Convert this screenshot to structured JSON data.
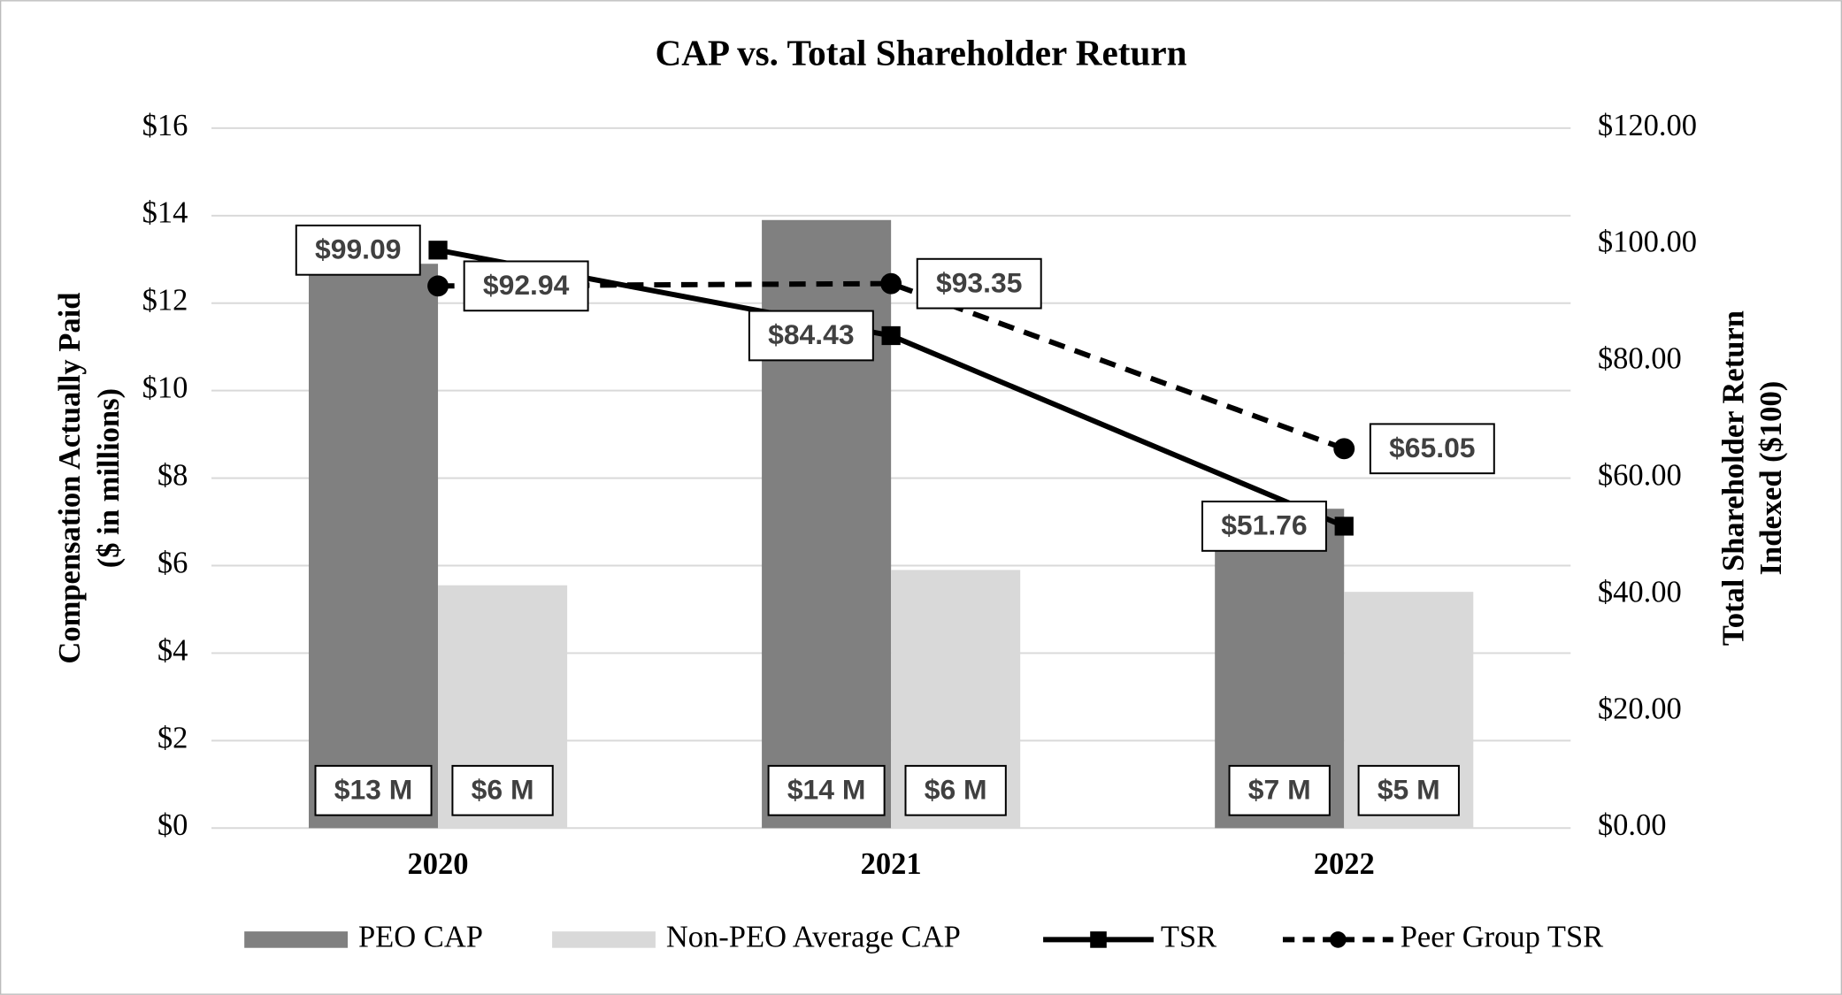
{
  "chart_data": {
    "type": "bar-line",
    "title": "CAP vs. Total Shareholder Return",
    "ylabel": [
      "Compensation Actually Paid",
      "($ in millions)"
    ],
    "y2label": [
      "Total Shareholder Return",
      "Indexed ($100)"
    ],
    "categories": [
      "2020",
      "2021",
      "2022"
    ],
    "ylim": [
      0,
      16
    ],
    "yticks": [
      {
        "value": 0,
        "label": "$0"
      },
      {
        "value": 2,
        "label": "$2"
      },
      {
        "value": 4,
        "label": "$4"
      },
      {
        "value": 6,
        "label": "$6"
      },
      {
        "value": 8,
        "label": "$8"
      },
      {
        "value": 10,
        "label": "$10"
      },
      {
        "value": 12,
        "label": "$12"
      },
      {
        "value": 14,
        "label": "$14"
      },
      {
        "value": 16,
        "label": "$16"
      }
    ],
    "y2lim": [
      0,
      120
    ],
    "y2ticks": [
      {
        "value": 0,
        "label": "$0.00"
      },
      {
        "value": 20,
        "label": "$20.00"
      },
      {
        "value": 40,
        "label": "$40.00"
      },
      {
        "value": 60,
        "label": "$60.00"
      },
      {
        "value": 80,
        "label": "$80.00"
      },
      {
        "value": 100,
        "label": "$100.00"
      },
      {
        "value": 120,
        "label": "$120.00"
      }
    ],
    "grid": true,
    "legend": "bottom",
    "series": [
      {
        "name": "PEO CAP",
        "type": "bar",
        "color": "#808080",
        "values": [
          12.9,
          13.9,
          7.3
        ],
        "value_labels": [
          "$13 M",
          "$14 M",
          "$7 M"
        ]
      },
      {
        "name": "Non-PEO Average CAP",
        "type": "bar",
        "color": "#d9d9d9",
        "values": [
          5.55,
          5.9,
          5.4
        ],
        "value_labels": [
          "$6 M",
          "$6 M",
          "$5 M"
        ]
      },
      {
        "name": "TSR",
        "type": "line",
        "axis": "y2",
        "color": "#000000",
        "marker": "square",
        "dashed": false,
        "values": [
          99.09,
          84.43,
          51.76
        ],
        "value_labels": [
          "$99.09",
          "$84.43",
          "$51.76"
        ]
      },
      {
        "name": "Peer Group TSR",
        "type": "line",
        "axis": "y2",
        "color": "#000000",
        "marker": "circle",
        "dashed": true,
        "values": [
          92.94,
          93.35,
          65.05
        ],
        "value_labels": [
          "$92.94",
          "$93.35",
          "$65.05"
        ]
      }
    ]
  }
}
